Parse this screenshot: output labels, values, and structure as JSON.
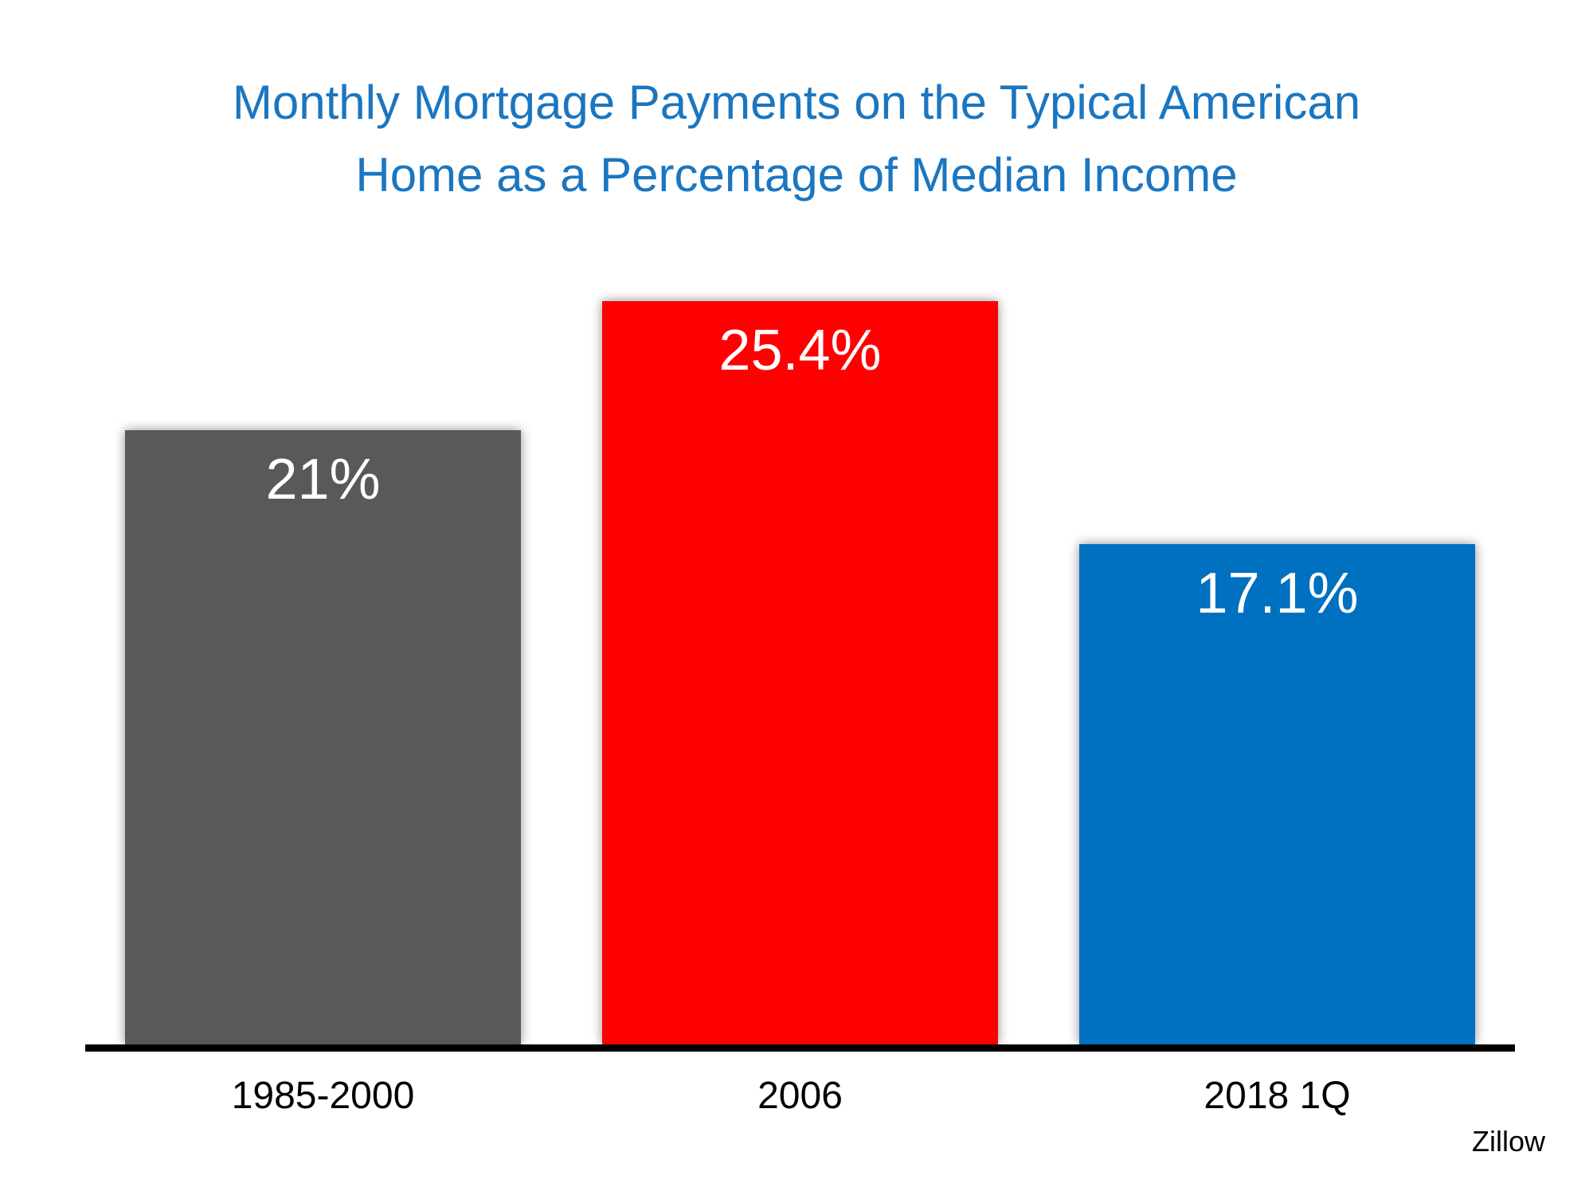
{
  "title": {
    "line1": "Monthly Mortgage Payments on the Typical American",
    "line2": "Home as a Percentage of Median Income",
    "color": "#1B76C0"
  },
  "source": "Zillow",
  "chart_data": {
    "type": "bar",
    "title": "Monthly Mortgage Payments on the Typical American Home as a Percentage of Median Income",
    "categories": [
      "1985-2000",
      "2006",
      "2018 1Q"
    ],
    "values": [
      21,
      25.4,
      17.1
    ],
    "value_labels": [
      "21%",
      "25.4%",
      "17.1%"
    ],
    "bar_colors": [
      "#595959",
      "#FF0000",
      "#0070C0"
    ],
    "value_label_color": "#FFFFFF",
    "axis_color": "#000000",
    "xlabel": "",
    "ylabel": "",
    "ylim": [
      0,
      25.4
    ],
    "grid": false,
    "legend": false
  }
}
